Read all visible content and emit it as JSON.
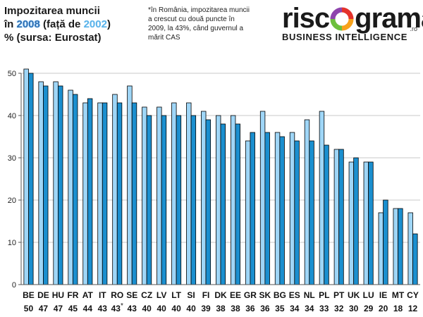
{
  "title": {
    "line1": "Impozitarea muncii",
    "line2_prefix": "în ",
    "year_2008": "2008",
    "line2_mid": " (față de ",
    "year_2002": "2002",
    "line2_suffix": ")",
    "line3": "% (sursa: Eurostat)"
  },
  "note": "*în România, impozitarea muncii a crescut cu două puncte în 2009, la 43%, când guvernul a mărit CAS",
  "logo": {
    "word_left": "risc",
    "word_right": "grama",
    "domain": ".ro",
    "tagline": "BUSINESS INTELLIGENCE"
  },
  "colors": {
    "series_2002": "#9fd6f7",
    "series_2008": "#1b8fcf",
    "bar_stroke": "#000000",
    "grid": "#c8c8c8",
    "axis": "#555555"
  },
  "chart_data": {
    "type": "bar",
    "title": "Impozitarea muncii în 2008 (față de 2002) % (sursa: Eurostat)",
    "ylim": [
      0,
      50
    ],
    "yticks": [
      0,
      10,
      20,
      30,
      40,
      50
    ],
    "grid": true,
    "categories": [
      "BE",
      "DE",
      "HU",
      "FR",
      "AT",
      "IT",
      "RO",
      "SE",
      "CZ",
      "LV",
      "LT",
      "SI",
      "FI",
      "DK",
      "EE",
      "GR",
      "SK",
      "BG",
      "ES",
      "NL",
      "PL",
      "PT",
      "UK",
      "LU",
      "IE",
      "MT",
      "CY"
    ],
    "value_labels": [
      "50",
      "47",
      "47",
      "45",
      "44",
      "43",
      "43*",
      "43",
      "40",
      "40",
      "40",
      "40",
      "39",
      "38",
      "38",
      "36",
      "36",
      "35",
      "34",
      "34",
      "33",
      "32",
      "30",
      "29",
      "20",
      "18",
      "12"
    ],
    "series": [
      {
        "key": "2002",
        "values": [
          51,
          48,
          48,
          46,
          43,
          43,
          45,
          47,
          42,
          42,
          43,
          43,
          41,
          40,
          40,
          34,
          41,
          36,
          36,
          39,
          41,
          32,
          29,
          29,
          17,
          18,
          17
        ]
      },
      {
        "key": "2008",
        "values": [
          50,
          47,
          47,
          45,
          44,
          43,
          43,
          43,
          40,
          40,
          40,
          40,
          39,
          38,
          38,
          36,
          36,
          35,
          34,
          34,
          33,
          32,
          30,
          29,
          20,
          18,
          12
        ]
      }
    ]
  }
}
